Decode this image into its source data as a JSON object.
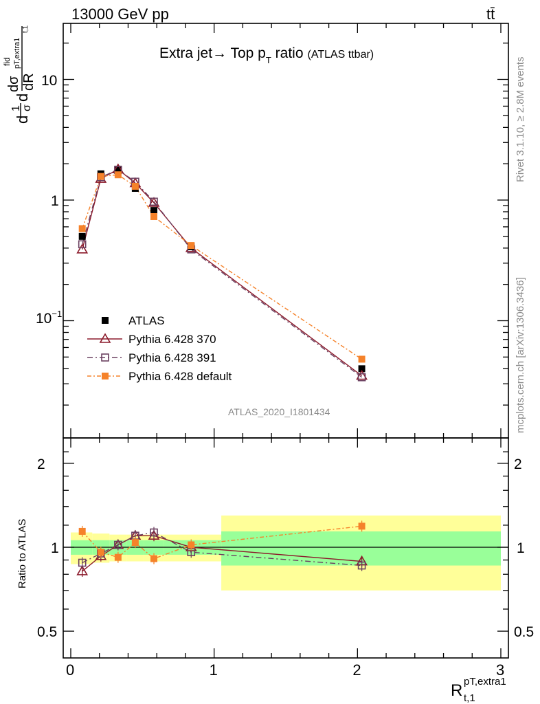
{
  "header": {
    "left": "13000 GeV pp",
    "right": "tt̄"
  },
  "title": {
    "main": "Extra jet→ Top p",
    "sub": "T",
    "rest": " ratio",
    "tag": "(ATLAS ttbar)"
  },
  "side": {
    "rivet": "Rivet 3.1.10, ≥ 2.8M events",
    "mcplots": "mcplots.cern.ch [arXiv:1306.3436]"
  },
  "watermark": "ATLAS_2020_I1801434",
  "ylabel_main": "d¹/σ d dσ/dR  (fid, pT extra1, t,1)",
  "ylabel_ratio": "Ratio to ATLAS",
  "xlabel": {
    "base": "R",
    "sup": "pT,extra1",
    "sub": "t,1"
  },
  "legend": [
    {
      "label": "ATLAS",
      "color": "#000000",
      "marker": "square-filled"
    },
    {
      "label": "Pythia 6.428 370",
      "color": "#8b1a2b",
      "marker": "triangle-open"
    },
    {
      "label": "Pythia 6.428 391",
      "color": "#6b4060",
      "marker": "square-open"
    },
    {
      "label": "Pythia 6.428 default",
      "color": "#f5822a",
      "marker": "square-filled"
    }
  ],
  "chart_data": {
    "type": "line",
    "title": "Extra jet→ Top pT ratio (ATLAS ttbar)",
    "xlabel": "R t,1 pT,extra1",
    "ylabel": "1/σ dσfid/dR",
    "xlim": [
      -0.1,
      3.1
    ],
    "ylim_main": [
      0.01,
      30
    ],
    "yscale_main": "log",
    "ylim_ratio": [
      0.4,
      2.4
    ],
    "x_ticks": [
      "0",
      "1",
      "2",
      "3"
    ],
    "y_ticks_main": [
      "10^-1",
      "1",
      "10"
    ],
    "y_ticks_ratio": [
      "0.5",
      "1",
      "2"
    ],
    "x": [
      0.08,
      0.21,
      0.33,
      0.45,
      0.58,
      0.84,
      2.03
    ],
    "bins": [
      [
        0.0,
        0.15
      ],
      [
        0.15,
        0.27
      ],
      [
        0.27,
        0.39
      ],
      [
        0.39,
        0.51
      ],
      [
        0.51,
        0.65
      ],
      [
        0.65,
        1.05
      ],
      [
        1.05,
        3.0
      ]
    ],
    "series": [
      {
        "name": "ATLAS",
        "values": [
          0.5,
          1.65,
          1.8,
          1.25,
          0.82,
          0.41,
          0.04
        ]
      },
      {
        "name": "Pythia 6.428 370",
        "values": [
          0.39,
          1.5,
          1.8,
          1.38,
          0.95,
          0.4,
          0.035
        ]
      },
      {
        "name": "Pythia 6.428 391",
        "values": [
          0.43,
          1.55,
          1.78,
          1.42,
          0.97,
          0.39,
          0.034
        ]
      },
      {
        "name": "Pythia 6.428 default",
        "values": [
          0.58,
          1.57,
          1.62,
          1.3,
          0.73,
          0.42,
          0.048
        ]
      }
    ],
    "ratio": {
      "bands_green": [
        [
          0.94,
          1.06
        ],
        [
          0.94,
          1.06
        ],
        [
          0.94,
          1.06
        ],
        [
          0.94,
          1.06
        ],
        [
          0.94,
          1.06
        ],
        [
          0.94,
          1.06
        ],
        [
          0.86,
          1.14
        ]
      ],
      "bands_yellow": [
        [
          0.87,
          1.13
        ],
        [
          0.88,
          1.12
        ],
        [
          0.89,
          1.11
        ],
        [
          0.89,
          1.11
        ],
        [
          0.89,
          1.11
        ],
        [
          0.89,
          1.11
        ],
        [
          0.7,
          1.3
        ]
      ],
      "series": [
        {
          "name": "Pythia 6.428 370",
          "values": [
            0.82,
            0.93,
            1.02,
            1.1,
            1.1,
            1.0,
            0.89
          ]
        },
        {
          "name": "Pythia 6.428 391",
          "values": [
            0.88,
            0.95,
            1.02,
            1.1,
            1.13,
            0.96,
            0.86
          ]
        },
        {
          "name": "Pythia 6.428 default",
          "values": [
            1.14,
            0.96,
            0.92,
            1.04,
            0.91,
            1.02,
            1.19
          ]
        }
      ]
    }
  }
}
